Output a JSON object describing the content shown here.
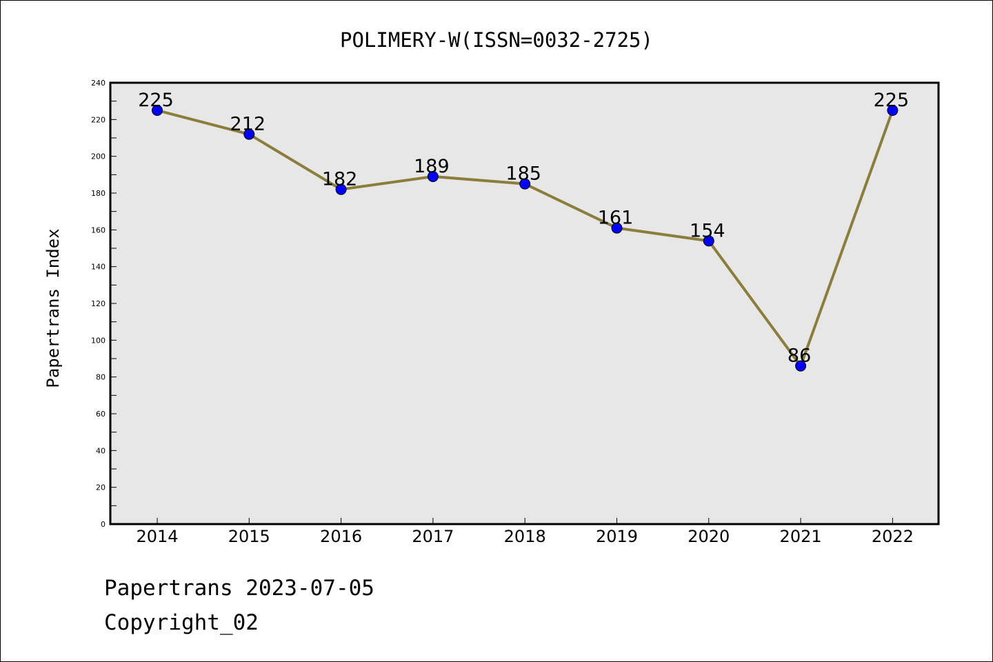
{
  "chart_data": {
    "type": "line",
    "title": "POLIMERY-W(ISSN=0032-2725)",
    "xlabel": "",
    "ylabel": "Papertrans Index",
    "categories": [
      "2014",
      "2015",
      "2016",
      "2017",
      "2018",
      "2019",
      "2020",
      "2021",
      "2022"
    ],
    "series": [
      {
        "values": [
          225,
          212,
          182,
          189,
          185,
          161,
          154,
          86,
          225
        ]
      }
    ],
    "data_labels": [
      "225",
      "212",
      "182",
      "189",
      "185",
      "161",
      "154",
      "86",
      "225"
    ],
    "ylim": [
      0,
      240
    ],
    "yticks": [
      0,
      20,
      40,
      60,
      80,
      100,
      120,
      140,
      160,
      180,
      200,
      220,
      240
    ],
    "grid": false,
    "legend": "none",
    "line_color": "#8b7d3a",
    "marker_color": "#0000ff",
    "plot_background": "#e7e7e7"
  },
  "footer": {
    "date_line": "Papertrans 2023-07-05",
    "copyright": "Copyright_02"
  }
}
